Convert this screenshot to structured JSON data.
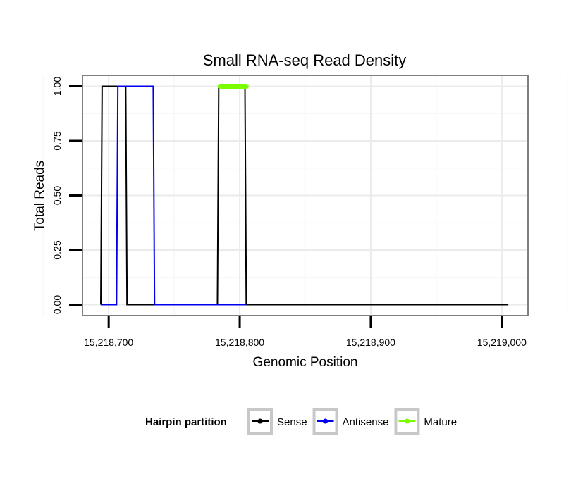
{
  "chart_data": {
    "type": "line",
    "title": "Small RNA-seq Read Density",
    "xlabel": "Genomic Position",
    "ylabel": "Total Reads",
    "xlim": [
      15218680,
      15219020
    ],
    "ylim": [
      -0.05,
      1.05
    ],
    "x_ticks": [
      15218700,
      15218800,
      15218900,
      15219000
    ],
    "x_tick_labels": [
      "15,218,700",
      "15,218,800",
      "15,218,900",
      "15,219,000"
    ],
    "y_ticks": [
      0.0,
      0.25,
      0.5,
      0.75,
      1.0
    ],
    "y_tick_labels": [
      "0.00",
      "0.25",
      "0.50",
      "0.75",
      "1.00"
    ],
    "grid": true,
    "legend": {
      "title": "Hairpin partition",
      "position": "bottom"
    },
    "series": [
      {
        "name": "Sense",
        "color": "#000000",
        "x": [
          15218694,
          15218695,
          15218713,
          15218714,
          15218783,
          15218784,
          15218804,
          15218805,
          15219005
        ],
        "y": [
          0,
          1,
          1,
          0,
          0,
          1,
          1,
          0,
          0
        ]
      },
      {
        "name": "Antisense",
        "color": "#0000ee",
        "x": [
          15218694,
          15218706,
          15218707,
          15218734,
          15218735,
          15218783,
          15218804,
          15218805
        ],
        "y": [
          0,
          0,
          1,
          1,
          0,
          0,
          0,
          0
        ]
      },
      {
        "name": "Mature",
        "color": "#7cfc00",
        "x": [
          15218785,
          15218790,
          15218795,
          15218800,
          15218805
        ],
        "y": [
          1,
          1,
          1,
          1,
          1
        ]
      }
    ]
  }
}
